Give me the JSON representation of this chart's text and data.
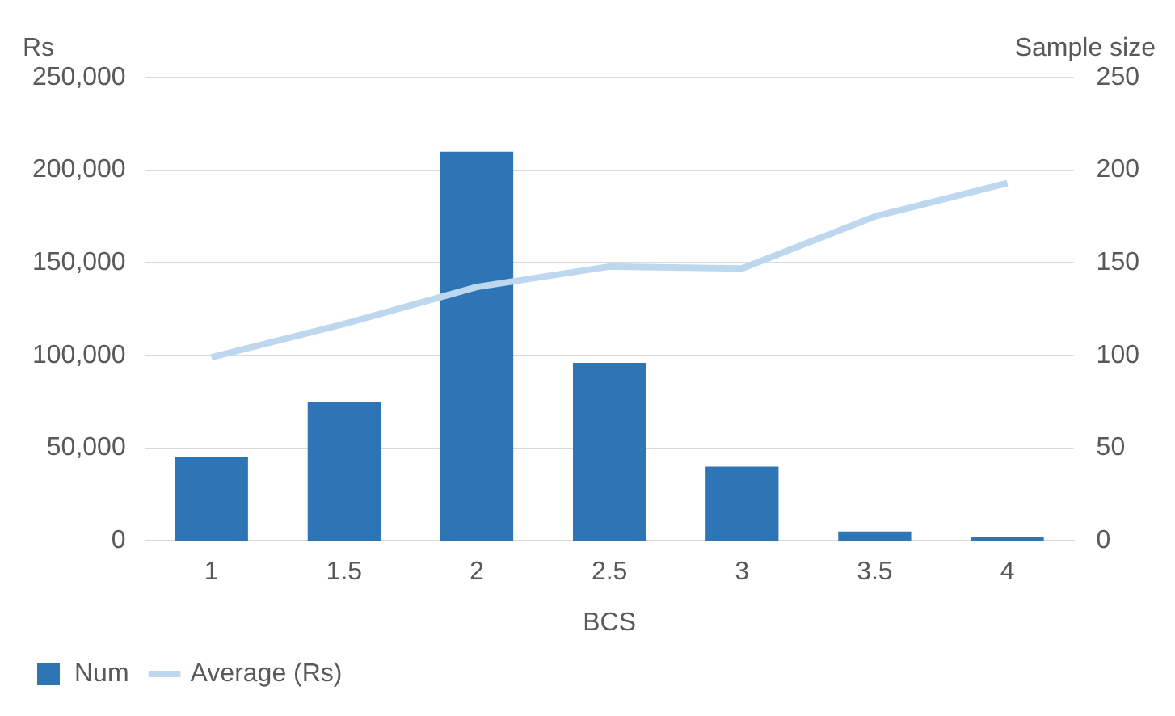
{
  "chart_data": {
    "type": "bar",
    "xlabel": "BCS",
    "ylabel": "Rs",
    "y2label": "Sample size",
    "categories": [
      "1",
      "1.5",
      "2",
      "2.5",
      "3",
      "3.5",
      "4"
    ],
    "series": [
      {
        "name": "Num",
        "axis": "y2",
        "color": "#2e75b6",
        "values": [
          45,
          75,
          210,
          96,
          40,
          5,
          2
        ]
      },
      {
        "name": "Average (Rs)",
        "type": "line",
        "axis": "y",
        "color": "#bdd7ee",
        "values": [
          99000,
          117000,
          137000,
          148000,
          147000,
          175000,
          193000
        ]
      }
    ],
    "ylim": [
      0,
      250000
    ],
    "yticks": [
      {
        "value": 0,
        "label": "0"
      },
      {
        "value": 50000,
        "label": "50,000"
      },
      {
        "value": 100000,
        "label": "100,000"
      },
      {
        "value": 150000,
        "label": "150,000"
      },
      {
        "value": 200000,
        "label": "200,000"
      },
      {
        "value": 250000,
        "label": "250,000"
      }
    ],
    "y2lim": [
      0,
      250
    ],
    "y2ticks": [
      0,
      50,
      100,
      150,
      200,
      250
    ],
    "grid": "y",
    "legend": "bottom",
    "marker": "none"
  }
}
